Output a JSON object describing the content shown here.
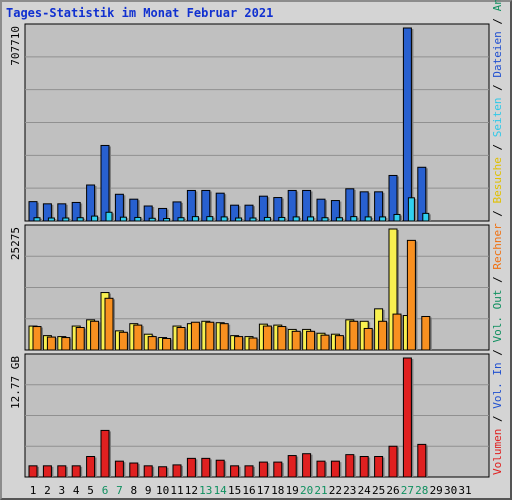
{
  "chart_data": {
    "type": "bar",
    "title": "Tages-Statistik im Monat Februar 2021",
    "categories": [
      "1",
      "2",
      "3",
      "4",
      "5",
      "6",
      "7",
      "8",
      "9",
      "10",
      "11",
      "12",
      "13",
      "14",
      "15",
      "16",
      "17",
      "18",
      "19",
      "20",
      "21",
      "22",
      "23",
      "24",
      "25",
      "26",
      "27",
      "28",
      "29",
      "30",
      "31"
    ],
    "weekend_days": [
      "6",
      "7",
      "13",
      "14",
      "20",
      "21",
      "27",
      "28"
    ],
    "colors": {
      "hits": "#2860d0",
      "files": "#30d0f0",
      "pages": "#30c8e8",
      "visits": "#f8f050",
      "sites": "#f89020",
      "kbytes": "#e02020",
      "title": "#1030d0",
      "weekend": "#109060",
      "plot_bg": "#c0c0c0",
      "frame_bg": "#d4d4d4"
    },
    "panels": [
      {
        "id": "top",
        "max_label": "707710",
        "ymax": 707710,
        "series": [
          {
            "name": "Anfragen",
            "values": [
              71000,
              63000,
              63000,
              68000,
              132000,
              277000,
              98000,
              80000,
              55000,
              46000,
              70000,
              112000,
              112000,
              102000,
              58000,
              58000,
              91000,
              86000,
              112000,
              112000,
              80000,
              75000,
              118000,
              107000,
              107000,
              167000,
              707710,
              197000,
              0,
              0,
              0
            ]
          },
          {
            "name": "Dateien",
            "values": [
              12000,
              11000,
              11000,
              12000,
              18000,
              32000,
              14000,
              13000,
              10000,
              9000,
              12000,
              16000,
              16000,
              15000,
              11000,
              11000,
              13000,
              13000,
              15000,
              15000,
              12000,
              12000,
              16000,
              15000,
              15000,
              24000,
              85000,
              28000,
              0,
              0,
              0
            ]
          }
        ]
      },
      {
        "id": "middle",
        "max_label": "25275",
        "ymax": 25275,
        "series": [
          {
            "name": "Besuche",
            "values": [
              5000,
              3000,
              2800,
              5000,
              6300,
              12000,
              4000,
              5500,
              3300,
              2600,
              5000,
              5500,
              6000,
              5700,
              3000,
              2800,
              5400,
              5200,
              4300,
              4300,
              3500,
              3300,
              6300,
              6000,
              8600,
              25275,
              7200,
              0,
              0,
              0,
              0
            ]
          },
          {
            "name": "Rechner",
            "values": [
              4900,
              2700,
              2600,
              4700,
              6000,
              10800,
              3700,
              5200,
              2800,
              2400,
              4700,
              5800,
              5800,
              5500,
              2800,
              2500,
              5000,
              4900,
              3900,
              3900,
              3100,
              3000,
              6000,
              4500,
              6000,
              7500,
              22900,
              7000,
              0,
              0,
              0
            ]
          }
        ]
      },
      {
        "id": "bottom",
        "max_label": "12.77 GB",
        "ymax": 12.77,
        "series": [
          {
            "name": "Volumen",
            "values": [
              1.2,
              1.2,
              1.2,
              1.2,
              2.2,
              5.0,
              1.7,
              1.5,
              1.2,
              1.1,
              1.3,
              2.0,
              2.0,
              1.8,
              1.2,
              1.2,
              1.6,
              1.6,
              2.3,
              2.5,
              1.7,
              1.7,
              2.4,
              2.2,
              2.2,
              3.3,
              12.77,
              3.5,
              0,
              0,
              0
            ]
          }
        ]
      }
    ],
    "legend": [
      "Anfragen",
      "Dateien",
      "Seiten",
      "Besuche",
      "Rechner",
      "Vol. Out",
      "Vol. In",
      "Volumen"
    ],
    "legend_colors": [
      "#109060",
      "#2050d0",
      "#30c8e8",
      "#e0c000",
      "#f07010",
      "#109060",
      "#2050d0",
      "#e02020"
    ]
  }
}
